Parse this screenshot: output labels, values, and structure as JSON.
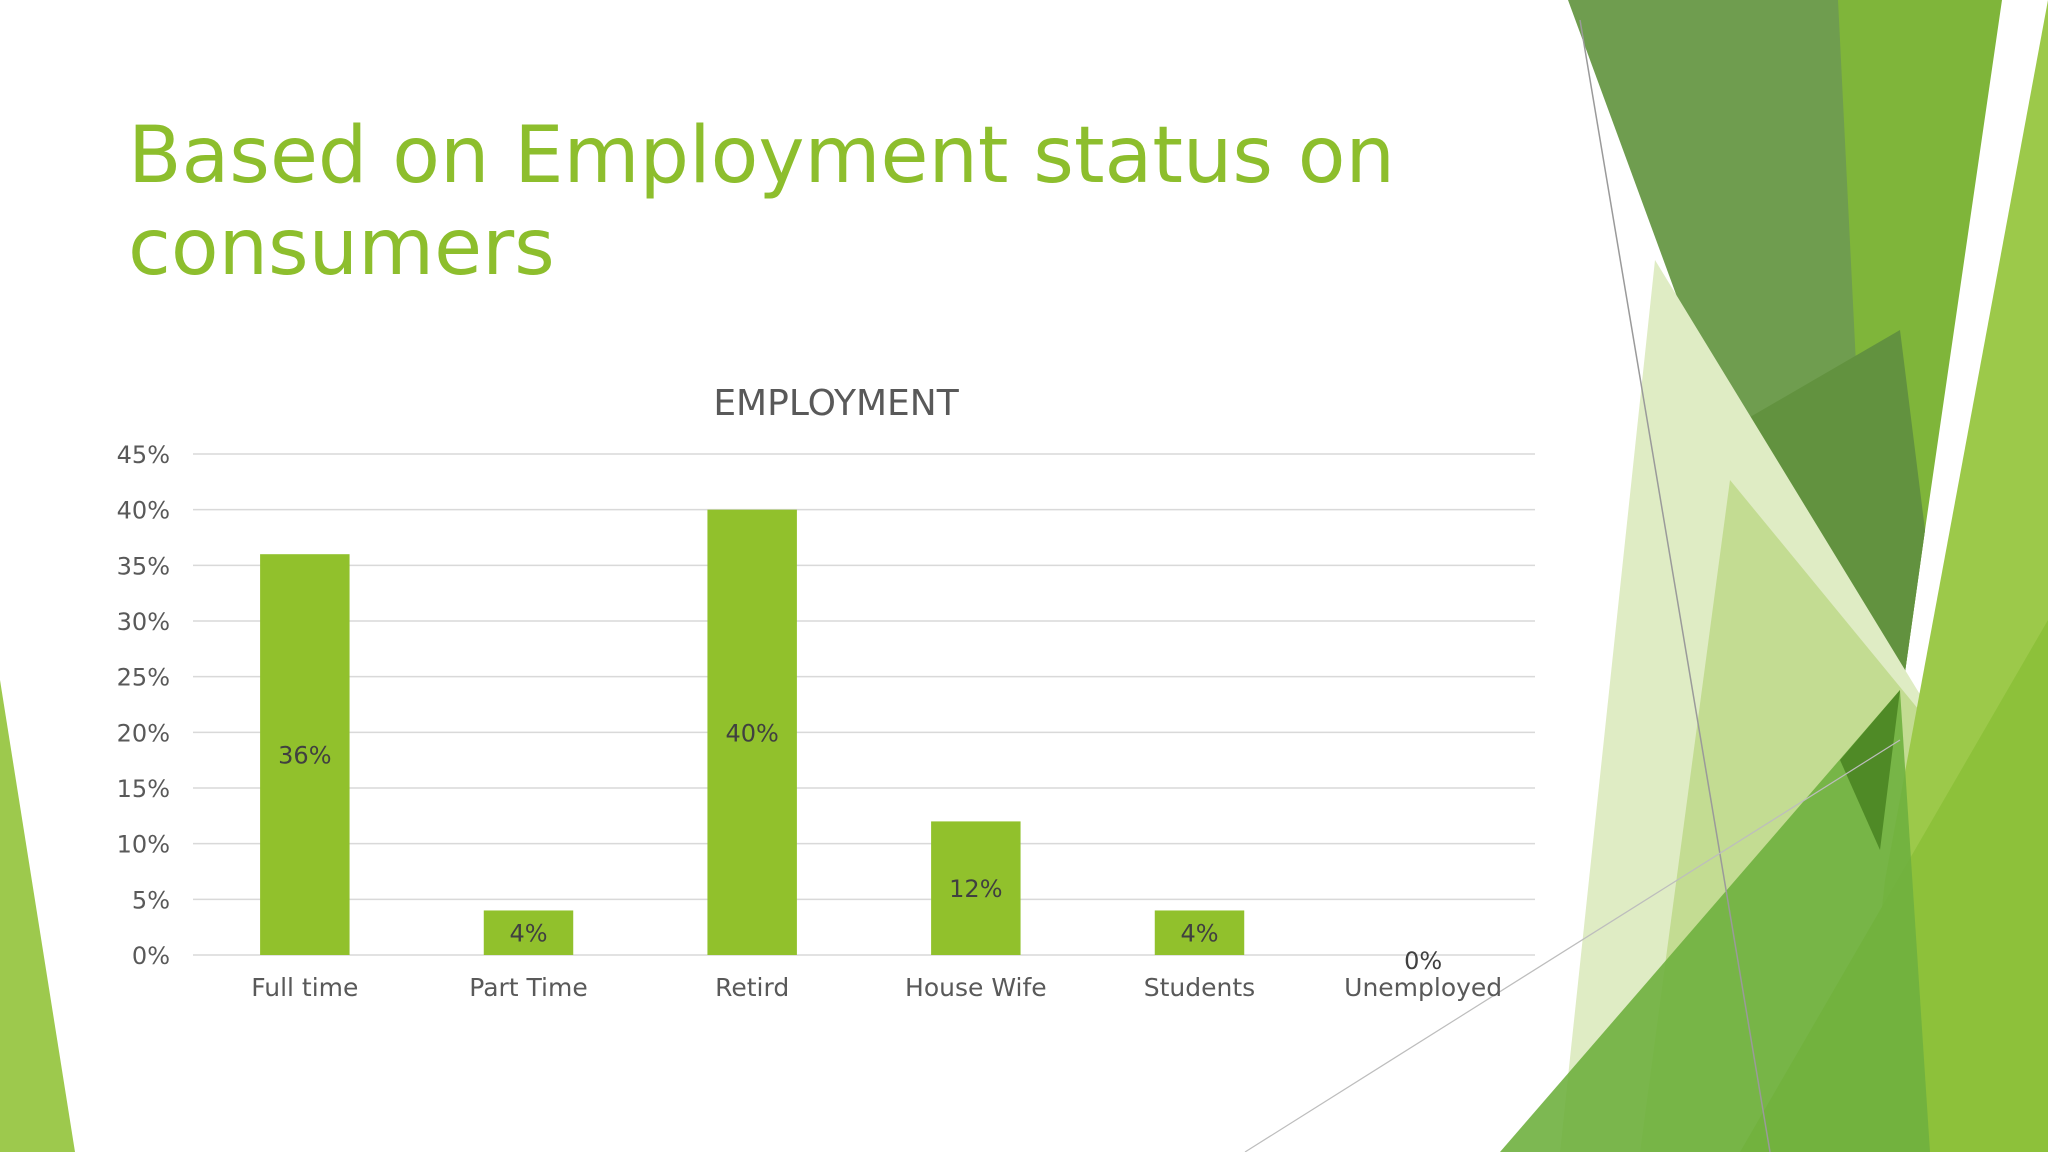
{
  "slide": {
    "title": "Based on Employment status on consumers",
    "colors": {
      "title": "#8dbe2d",
      "bar": "#91c12c",
      "grid": "#d9d9d9",
      "axis_text": "#595959"
    },
    "decoration": "green-facets"
  },
  "chart_data": {
    "type": "bar",
    "title": "EMPLOYMENT",
    "categories": [
      "Full time",
      "Part Time",
      "Retird",
      "House Wife",
      "Students",
      "Unemployed"
    ],
    "values": [
      36,
      4,
      40,
      12,
      4,
      0
    ],
    "data_labels": [
      "36%",
      "4%",
      "40%",
      "12%",
      "4%",
      "0%"
    ],
    "yticks": [
      "0%",
      "5%",
      "10%",
      "15%",
      "20%",
      "25%",
      "30%",
      "35%",
      "40%",
      "45%"
    ],
    "ylim": [
      0,
      45
    ],
    "ytick_step": 5,
    "grid": true,
    "legend": "none"
  }
}
